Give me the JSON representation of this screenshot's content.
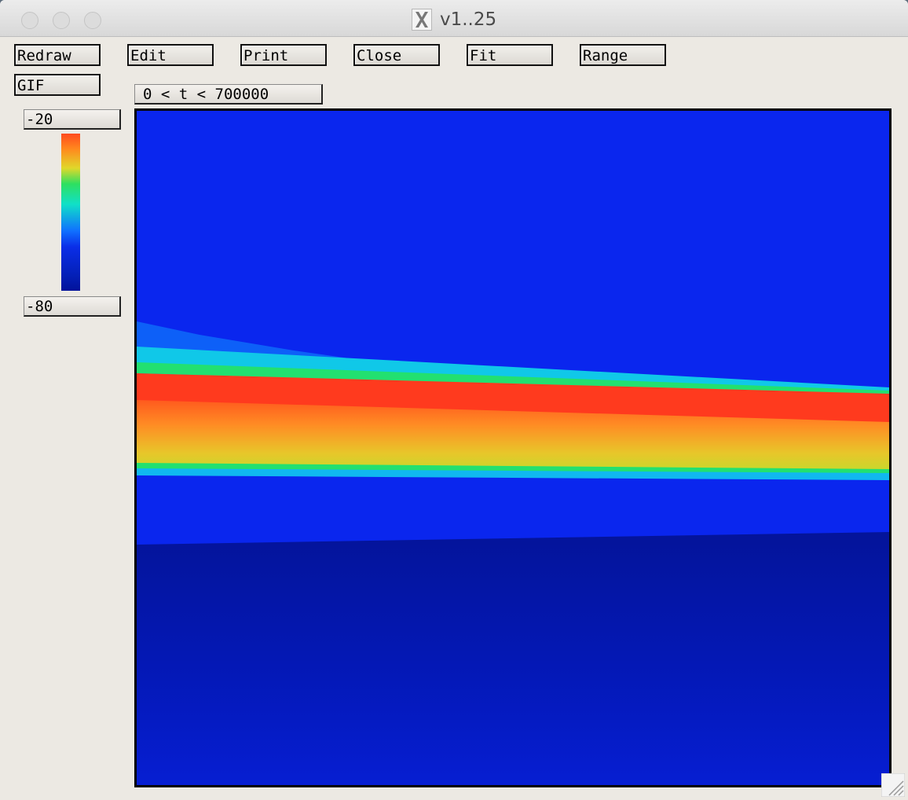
{
  "window": {
    "title": "v1..25",
    "title_icon": "x11-icon"
  },
  "toolbar": {
    "redraw": "Redraw",
    "edit": "Edit",
    "print": "Print",
    "close": "Close",
    "fit": "Fit",
    "range": "Range",
    "gif": "GIF"
  },
  "time_range": "0 < t < 700000",
  "colorscale": {
    "max": "-20",
    "min": "-80"
  },
  "colors": {
    "background_blue": "#0a26ee",
    "deep_blue": "#0418a8",
    "band_red": "#ff3a1e",
    "band_yellow": "#e6d62a",
    "band_green": "#22e070",
    "band_cyan": "#10c8e8"
  }
}
